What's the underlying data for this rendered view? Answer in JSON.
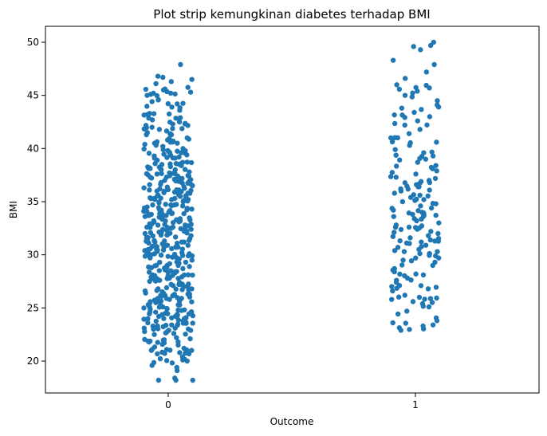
{
  "chart_data": {
    "type": "scatter",
    "title": "Plot strip kemungkinan diabetes terhadap BMI",
    "xlabel": "Outcome",
    "ylabel": "BMI",
    "categories": [
      "0",
      "1"
    ],
    "yticks": [
      "20",
      "25",
      "30",
      "35",
      "40",
      "45",
      "50"
    ],
    "ylim": [
      17.0,
      51.5
    ],
    "grid": false,
    "point_color": "#1f77b4",
    "series": [
      {
        "category": "0",
        "values": [
          18.2,
          18.2,
          18.4,
          18.2,
          19.1,
          19.4,
          19.6,
          20.0,
          20.1,
          20.4,
          20.8,
          20.8,
          21.0,
          21.1,
          21.2,
          21.8,
          21.8,
          22.1,
          22.2,
          22.5,
          22.6,
          22.9,
          23.0,
          23.1,
          23.3,
          23.4,
          23.6,
          23.8,
          24.0,
          24.0,
          24.2,
          24.3,
          24.4,
          24.5,
          24.6,
          24.8,
          24.9,
          25.0,
          25.1,
          25.2,
          25.3,
          25.5,
          25.6,
          25.8,
          25.9,
          26.1,
          26.2,
          26.3,
          26.4,
          26.6,
          26.8,
          26.9,
          27.1,
          27.2,
          27.4,
          27.5,
          27.6,
          27.8,
          27.9,
          28.0,
          28.1,
          28.3,
          28.4,
          28.5,
          28.7,
          28.9,
          29.0,
          29.2,
          29.3,
          29.5,
          29.6,
          29.7,
          29.9,
          30.0,
          30.1,
          30.2,
          30.4,
          30.5,
          30.7,
          30.8,
          30.9,
          31.0,
          31.2,
          31.2,
          31.3,
          31.5,
          31.6,
          31.8,
          31.9,
          32.0,
          32.1,
          32.3,
          32.4,
          32.5,
          32.6,
          32.8,
          32.9,
          33.1,
          33.2,
          33.3,
          33.4,
          33.6,
          33.7,
          33.8,
          33.9,
          34.1,
          34.2,
          34.3,
          34.5,
          34.6,
          34.7,
          34.9,
          35.0,
          35.1,
          35.2,
          35.4,
          35.5,
          35.6,
          35.8,
          35.9,
          36.0,
          36.1,
          36.3,
          36.4,
          36.5,
          36.6,
          36.8,
          36.9,
          37.1,
          37.2,
          37.3,
          37.4,
          37.6,
          37.7,
          37.8,
          38.0,
          38.1,
          38.2,
          38.3,
          38.5,
          38.7,
          38.9,
          39.1,
          39.2,
          39.4,
          39.6,
          39.8,
          40.0,
          40.2,
          40.5,
          40.6,
          40.8,
          41.0,
          41.3,
          41.5,
          41.8,
          42.0,
          42.3,
          42.5,
          42.7,
          42.9,
          43.3,
          43.6,
          43.9,
          44.2,
          44.6,
          45.0,
          45.2,
          45.3,
          45.6,
          46.1,
          46.3,
          46.5,
          46.7,
          46.8,
          47.9
        ],
        "spread_note": "dense strip; additional points repeat central values"
      },
      {
        "category": "1",
        "values": [
          22.9,
          23.3,
          23.4,
          23.6,
          23.8,
          24.7,
          25.1,
          25.4,
          25.6,
          25.8,
          26.0,
          26.2,
          26.6,
          26.8,
          27.1,
          27.4,
          27.6,
          27.8,
          28.1,
          28.4,
          28.7,
          29.0,
          29.3,
          29.5,
          29.7,
          29.9,
          30.1,
          30.3,
          30.5,
          30.7,
          30.9,
          31.1,
          31.2,
          31.4,
          31.6,
          31.8,
          32.0,
          32.2,
          32.4,
          32.6,
          32.8,
          33.0,
          33.2,
          33.4,
          33.6,
          33.8,
          34.0,
          34.2,
          34.4,
          34.6,
          34.8,
          35.0,
          35.2,
          35.4,
          35.6,
          35.8,
          36.0,
          36.2,
          36.4,
          36.6,
          36.8,
          37.0,
          37.3,
          37.6,
          37.9,
          38.1,
          38.4,
          38.7,
          39.0,
          39.3,
          39.6,
          39.9,
          40.3,
          40.6,
          41.0,
          41.4,
          41.8,
          42.2,
          42.6,
          43.0,
          43.4,
          43.8,
          44.1,
          44.5,
          45.0,
          45.4,
          45.7,
          46.0,
          46.6,
          47.2,
          47.9,
          48.3,
          49.3,
          49.6,
          49.7,
          50.0
        ]
      }
    ]
  }
}
